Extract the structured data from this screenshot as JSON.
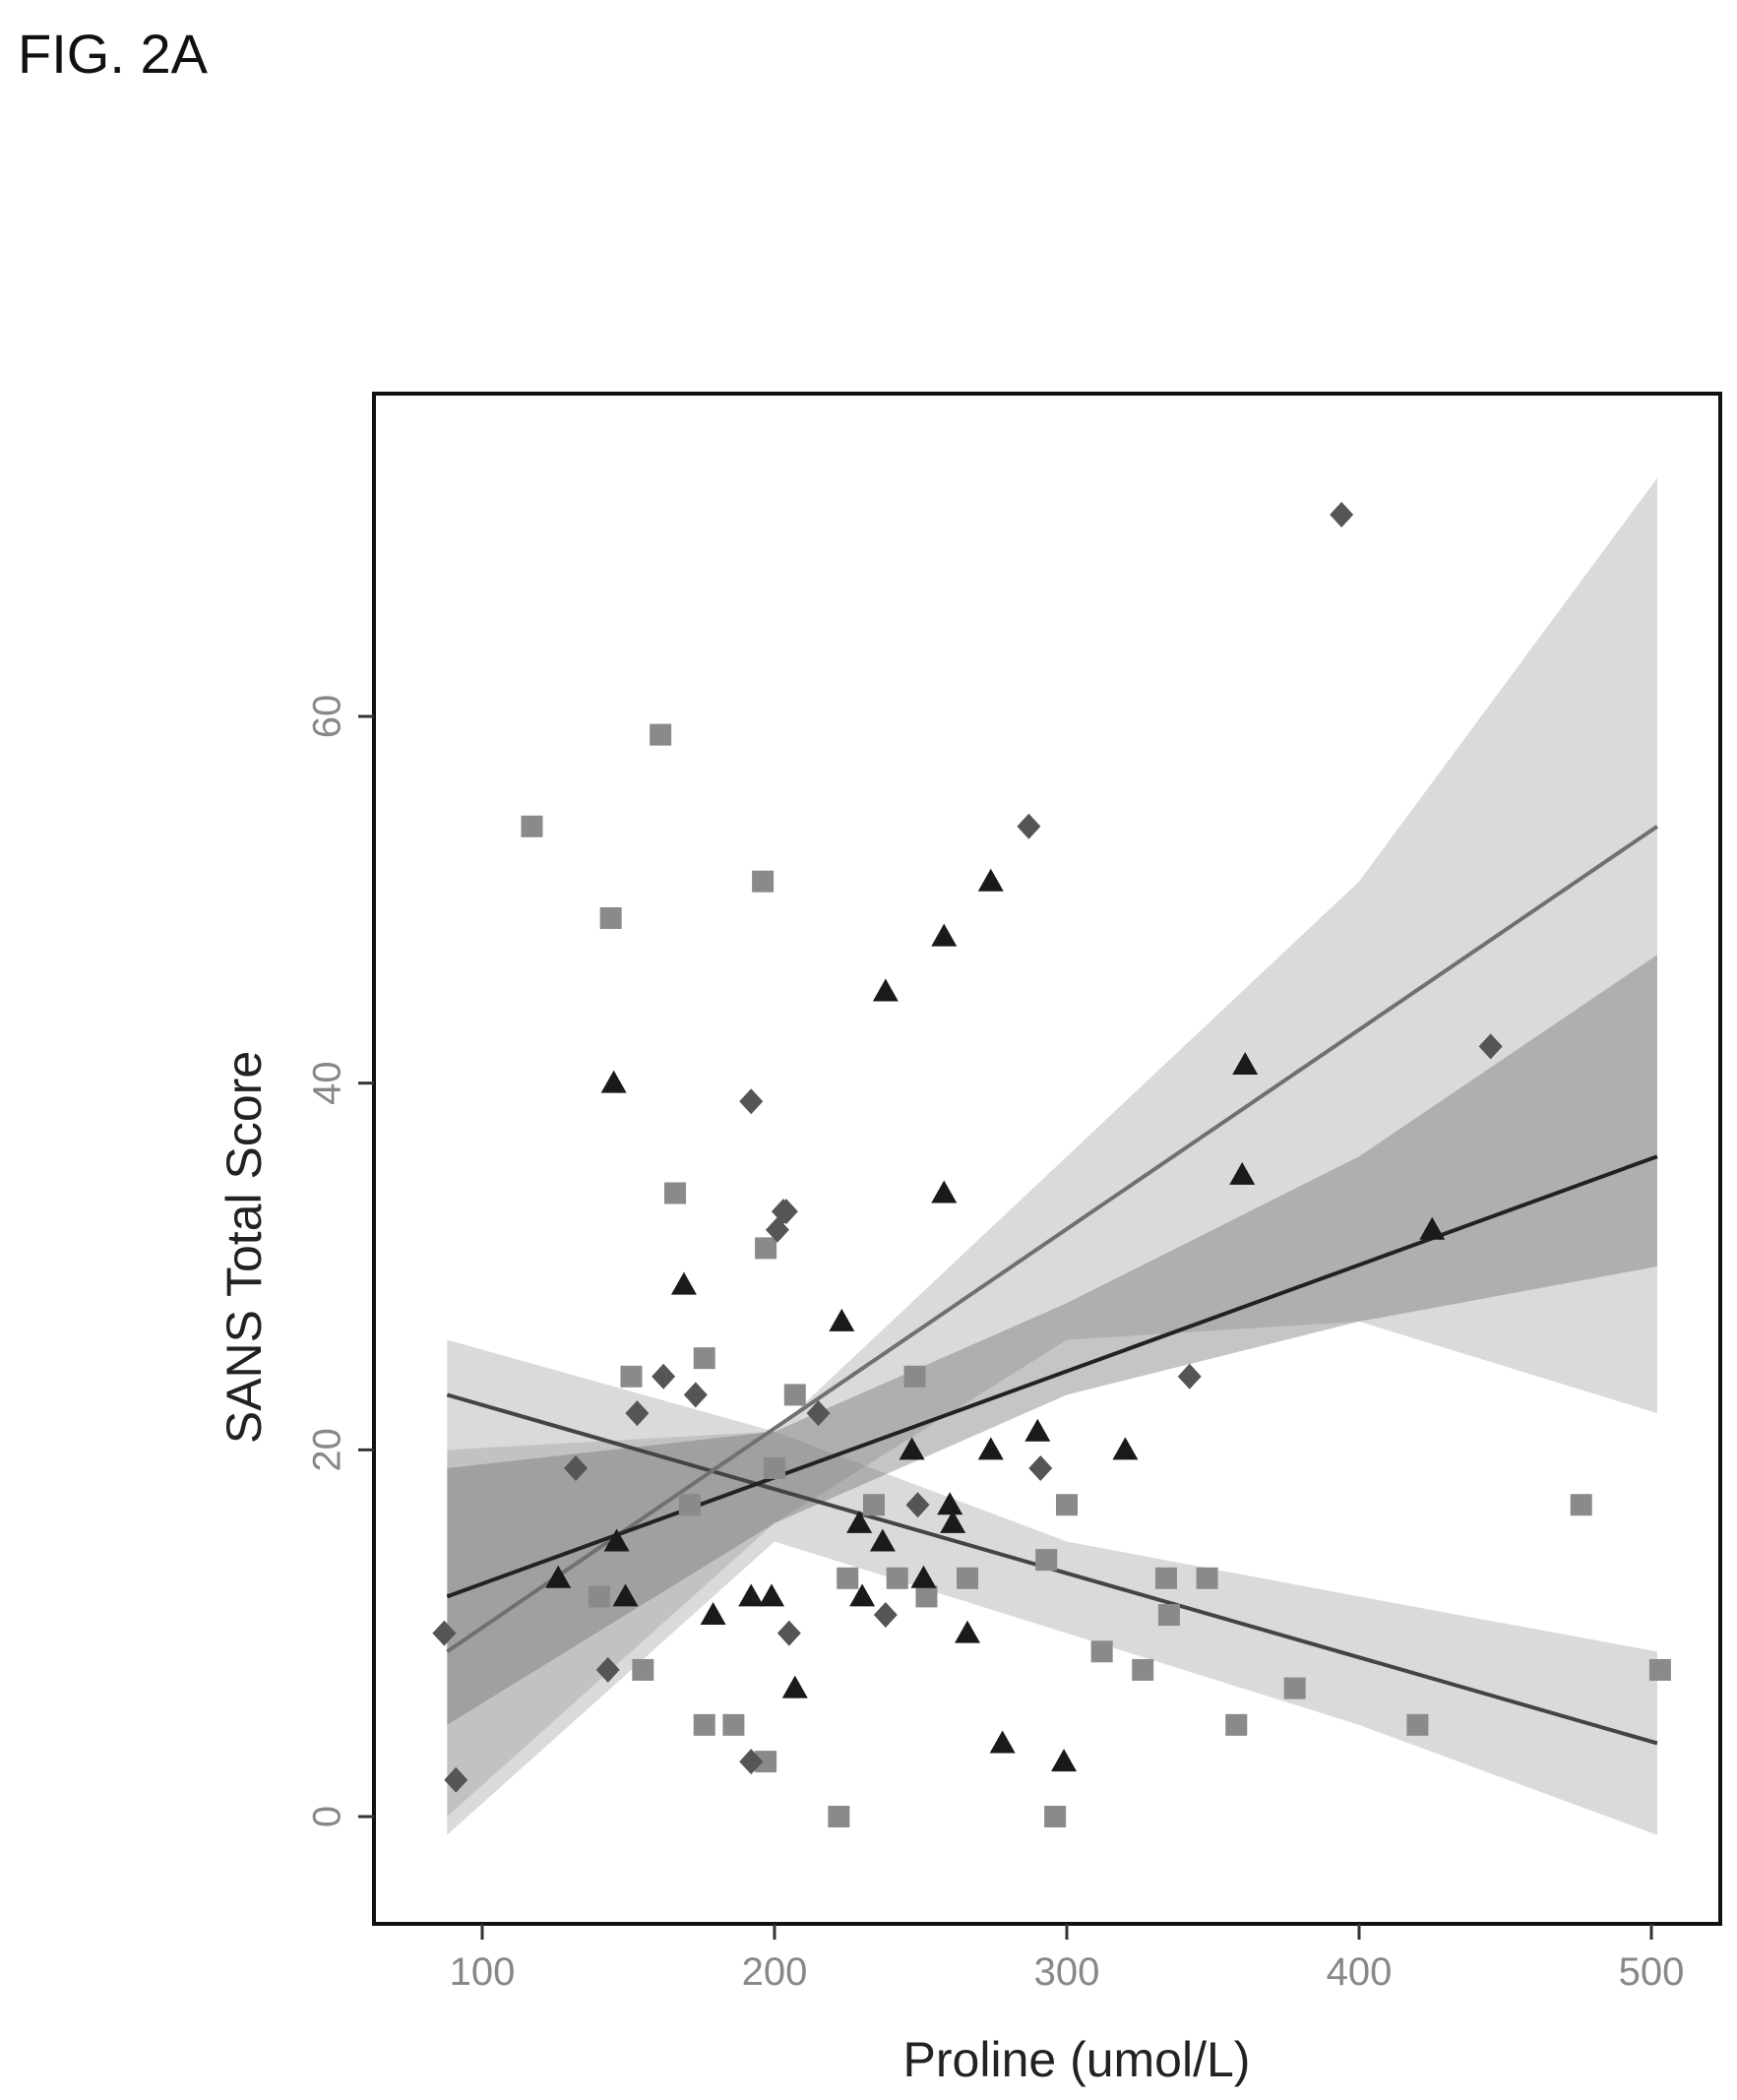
{
  "figure_label": "FIG. 2A",
  "chart_data": {
    "type": "scatter",
    "xlabel": "Proline (umol/L)",
    "ylabel": "SANS Total Score",
    "xlim": [
      70,
      512
    ],
    "ylim": [
      -6,
      76
    ],
    "xticks": [
      100,
      200,
      300,
      400,
      500
    ],
    "yticks": [
      0,
      20,
      40,
      60
    ],
    "grid": false,
    "legend": "none",
    "series": [
      {
        "marker": "square",
        "color": "#8a8a8a",
        "points": [
          [
            117,
            54
          ],
          [
            144,
            49
          ],
          [
            161,
            59
          ],
          [
            196,
            51
          ],
          [
            166,
            34
          ],
          [
            197,
            31
          ],
          [
            176,
            25
          ],
          [
            151,
            24
          ],
          [
            248,
            24
          ],
          [
            207,
            23
          ],
          [
            171,
            17
          ],
          [
            200,
            19
          ],
          [
            140,
            12
          ],
          [
            155,
            8
          ],
          [
            176,
            5
          ],
          [
            186,
            5
          ],
          [
            197,
            3
          ],
          [
            222,
            0
          ],
          [
            225,
            13
          ],
          [
            234,
            17
          ],
          [
            242,
            13
          ],
          [
            252,
            12
          ],
          [
            266,
            13
          ],
          [
            293,
            14
          ],
          [
            300,
            17
          ],
          [
            296,
            0
          ],
          [
            312,
            9
          ],
          [
            326,
            8
          ],
          [
            334,
            13
          ],
          [
            335,
            11
          ],
          [
            348,
            13
          ],
          [
            358,
            5
          ],
          [
            378,
            7
          ],
          [
            420,
            5
          ],
          [
            476,
            17
          ],
          [
            503,
            8
          ]
        ]
      },
      {
        "marker": "triangle",
        "color": "#1a1a1a",
        "points": [
          [
            145,
            40
          ],
          [
            146,
            15
          ],
          [
            149,
            12
          ],
          [
            126,
            13
          ],
          [
            169,
            29
          ],
          [
            179,
            11
          ],
          [
            192,
            12
          ],
          [
            199,
            12
          ],
          [
            207,
            7
          ],
          [
            223,
            27
          ],
          [
            229,
            16
          ],
          [
            230,
            12
          ],
          [
            237,
            15
          ],
          [
            238,
            45
          ],
          [
            247,
            20
          ],
          [
            251,
            13
          ],
          [
            258,
            48
          ],
          [
            258,
            34
          ],
          [
            260,
            17
          ],
          [
            261,
            16
          ],
          [
            266,
            10
          ],
          [
            274,
            51
          ],
          [
            274,
            20
          ],
          [
            278,
            4
          ],
          [
            290,
            21
          ],
          [
            299,
            3
          ],
          [
            320,
            20
          ],
          [
            360,
            35
          ],
          [
            361,
            41
          ],
          [
            425,
            32
          ]
        ]
      },
      {
        "marker": "diamond",
        "color": "#555555",
        "points": [
          [
            87,
            10
          ],
          [
            91,
            2
          ],
          [
            132,
            19
          ],
          [
            143,
            8
          ],
          [
            153,
            22
          ],
          [
            162,
            24
          ],
          [
            173,
            23
          ],
          [
            192,
            39
          ],
          [
            201,
            32
          ],
          [
            203,
            33
          ],
          [
            204,
            33
          ],
          [
            205,
            10
          ],
          [
            192,
            3
          ],
          [
            215,
            22
          ],
          [
            238,
            11
          ],
          [
            249,
            17
          ],
          [
            291,
            19
          ],
          [
            287,
            54
          ],
          [
            342,
            24
          ],
          [
            394,
            71
          ],
          [
            445,
            42
          ]
        ]
      }
    ],
    "fit_lines": [
      {
        "color": "#444444",
        "x": [
          88,
          502
        ],
        "y": [
          23,
          4
        ],
        "band_lower": [
          [
            88,
            -1
          ],
          [
            200,
            15
          ],
          [
            300,
            10
          ],
          [
            400,
            5
          ],
          [
            502,
            -1
          ]
        ],
        "band_upper": [
          [
            88,
            26
          ],
          [
            200,
            21
          ],
          [
            300,
            15
          ],
          [
            400,
            12
          ],
          [
            502,
            9
          ]
        ]
      },
      {
        "color": "#707070",
        "x": [
          88,
          502
        ],
        "y": [
          9,
          54
        ],
        "band_lower": [
          [
            88,
            0
          ],
          [
            200,
            16
          ],
          [
            300,
            26
          ],
          [
            400,
            27
          ],
          [
            502,
            22
          ]
        ],
        "band_upper": [
          [
            88,
            20
          ],
          [
            200,
            21
          ],
          [
            300,
            36
          ],
          [
            400,
            51
          ],
          [
            502,
            73
          ]
        ]
      },
      {
        "color": "#222222",
        "x": [
          88,
          502
        ],
        "y": [
          12,
          36
        ],
        "band_lower": [
          [
            88,
            5
          ],
          [
            200,
            16
          ],
          [
            300,
            23
          ],
          [
            400,
            27
          ],
          [
            502,
            30
          ]
        ],
        "band_upper": [
          [
            88,
            19
          ],
          [
            200,
            21
          ],
          [
            300,
            28
          ],
          [
            400,
            36
          ],
          [
            502,
            47
          ]
        ]
      }
    ]
  }
}
